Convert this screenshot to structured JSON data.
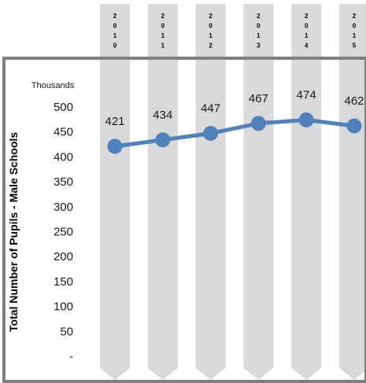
{
  "chart_data": {
    "type": "line",
    "categories": [
      "2010",
      "2011",
      "2012",
      "2013",
      "2014",
      "2015"
    ],
    "values": [
      421,
      434,
      447,
      467,
      474,
      462
    ],
    "ylabel": "Total Number of Pupils - Male Schools",
    "y_unit_label": "Thousands",
    "ylim": [
      0,
      500
    ],
    "yticks": [
      "-",
      "50",
      "100",
      "150",
      "200",
      "250",
      "300",
      "350",
      "400",
      "450",
      "500"
    ],
    "grid": false,
    "legend": "none",
    "colors": {
      "line": "#4f81bd",
      "column_bands": "#d9d9d9",
      "frame": "#7f7f7f"
    }
  }
}
